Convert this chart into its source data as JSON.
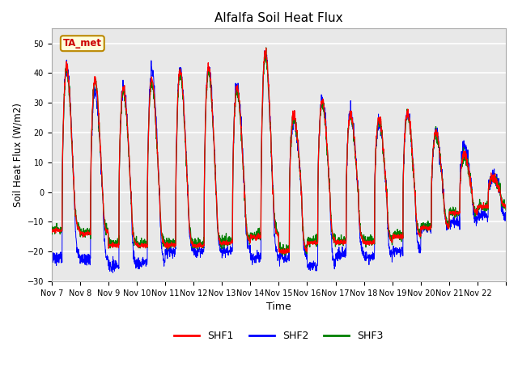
{
  "title": "Alfalfa Soil Heat Flux",
  "ylabel": "Soil Heat Flux (W/m2)",
  "xlabel": "Time",
  "annotation_text": "TA_met",
  "annotation_bg": "#ffffdd",
  "annotation_border": "#bb8800",
  "annotation_text_color": "#cc0000",
  "line_colors": {
    "SHF1": "red",
    "SHF2": "blue",
    "SHF3": "green"
  },
  "ylim": [
    -30,
    55
  ],
  "yticks": [
    -30,
    -20,
    -10,
    0,
    10,
    20,
    30,
    40,
    50
  ],
  "background_color": "#e8e8e8",
  "grid_color": "white",
  "x_tick_labels": [
    "Nov 7",
    "Nov 8",
    "Nov 9",
    "Nov 10",
    "Nov 11",
    "Nov 12",
    "Nov 13",
    "Nov 14",
    "Nov 15",
    "Nov 16",
    "Nov 17",
    "Nov 18",
    "Nov 19",
    "Nov 20",
    "Nov 21",
    "Nov 22"
  ],
  "n_days": 16,
  "points_per_day": 144
}
